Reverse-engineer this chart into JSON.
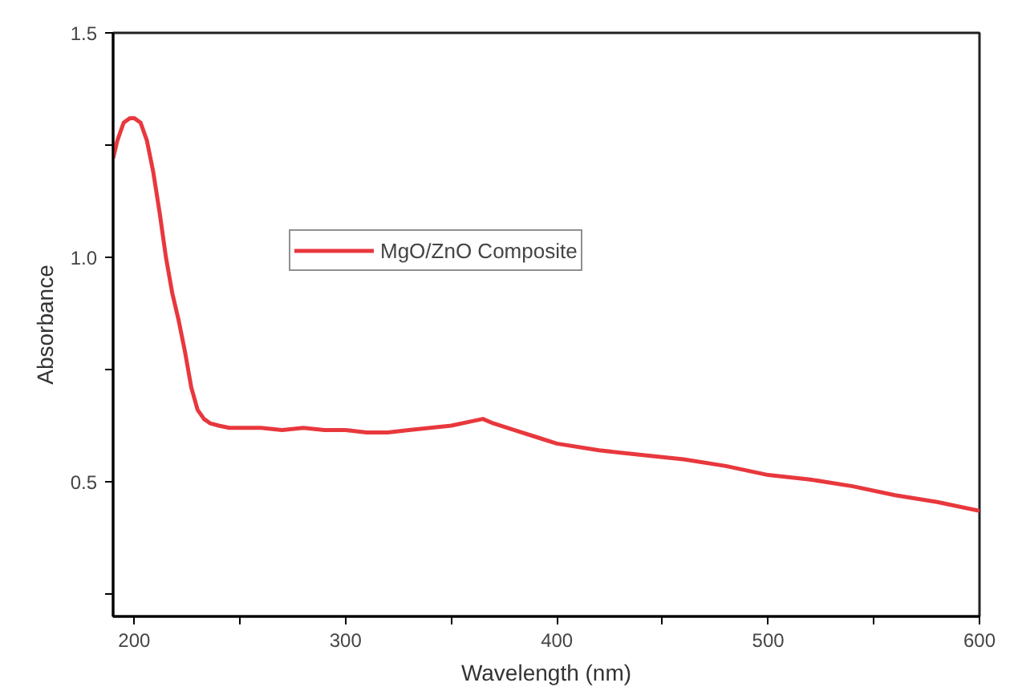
{
  "chart_data": {
    "type": "line",
    "xlabel": "Wavelength (nm)",
    "ylabel": "Absorbance",
    "x": [
      190,
      192,
      195,
      198,
      200,
      203,
      206,
      209,
      212,
      215,
      218,
      221,
      224,
      227,
      230,
      233,
      236,
      240,
      245,
      250,
      260,
      270,
      280,
      290,
      300,
      310,
      320,
      330,
      340,
      350,
      360,
      365,
      370,
      380,
      390,
      400,
      420,
      440,
      460,
      480,
      500,
      520,
      540,
      560,
      580,
      600
    ],
    "series": [
      {
        "name": "MgO/ZnO Composite",
        "color": "#e8383d",
        "values": [
          1.22,
          1.26,
          1.3,
          1.31,
          1.31,
          1.3,
          1.26,
          1.19,
          1.1,
          1.0,
          0.92,
          0.86,
          0.79,
          0.71,
          0.66,
          0.64,
          0.63,
          0.625,
          0.62,
          0.62,
          0.62,
          0.615,
          0.62,
          0.615,
          0.615,
          0.61,
          0.61,
          0.615,
          0.62,
          0.625,
          0.635,
          0.64,
          0.63,
          0.615,
          0.6,
          0.585,
          0.57,
          0.56,
          0.55,
          0.535,
          0.515,
          0.505,
          0.49,
          0.47,
          0.455,
          0.435
        ]
      }
    ],
    "xlim": [
      190,
      600
    ],
    "ylim": [
      0.2,
      1.5
    ],
    "xticks": [
      200,
      {
        "value": 250,
        "label": null
      },
      300,
      {
        "value": 350,
        "label": null
      },
      400,
      {
        "value": 450,
        "label": null
      },
      500,
      {
        "value": 550,
        "label": null
      },
      600
    ],
    "yticks": [
      {
        "value": 0.25,
        "label": null
      },
      0.5,
      {
        "value": 0.75,
        "label": null
      },
      {
        "value": 1,
        "label": "1.0"
      },
      {
        "value": 1.25,
        "label": null
      },
      1.5
    ],
    "grid": false,
    "legend": "top left",
    "marker": "none",
    "line_style": "solid"
  }
}
